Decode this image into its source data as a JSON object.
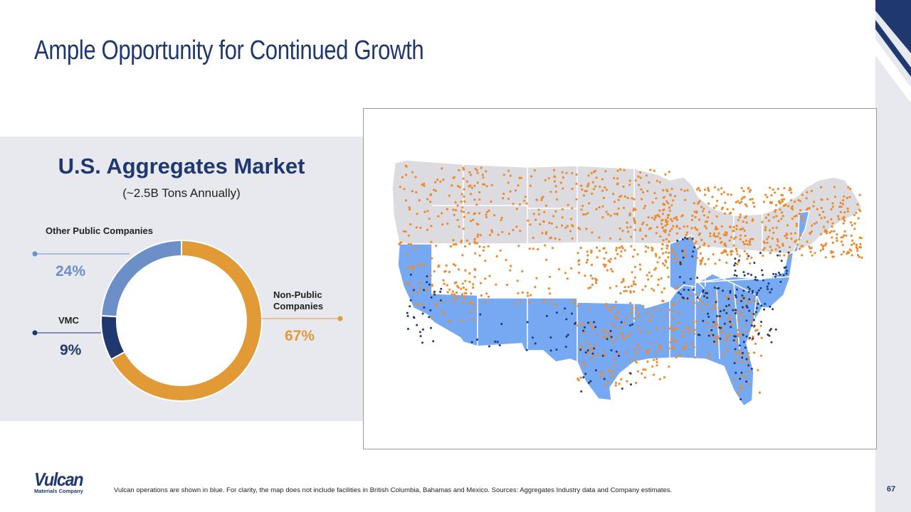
{
  "slide": {
    "title": "Ample Opportunity for Continued Growth",
    "page_number": "67",
    "footnote": "Vulcan operations are shown in blue. For clarity, the map does not include facilities in British Columbia, Bahamas and Mexico.  Sources: Aggregates Industry data and Company estimates.",
    "logo": {
      "name": "Vulcan",
      "subtitle": "Materials Company"
    }
  },
  "market": {
    "title": "U.S. Aggregates Market",
    "subtitle": "(~2.5B Tons Annually)"
  },
  "chart_data": {
    "type": "pie",
    "title": "U.S. Aggregates Market",
    "subtitle": "(~2.5B Tons Annually)",
    "slices": [
      {
        "label": "Non-Public Companies",
        "value": 67,
        "pct_label": "67%",
        "color": "#e19a35"
      },
      {
        "label": "VMC",
        "value": 9,
        "pct_label": "9%",
        "color": "#1f3870"
      },
      {
        "label": "Other Public Companies",
        "value": 24,
        "pct_label": "24%",
        "color": "#6c8fc8"
      }
    ],
    "start_angle_deg": 0,
    "direction": "clockwise"
  },
  "colors": {
    "navy": "#1f3870",
    "orange": "#e19a35",
    "facility_orange": "#ee8a2e",
    "light_blue": "#6c8fc8",
    "vulcan_state_blue": "#77a9f2",
    "state_gray": "#dcdce0",
    "panel_gray": "#e8e9ee"
  },
  "map": {
    "label": "Aggregates facilities map of the contiguous United States; Vulcan operations in blue"
  }
}
